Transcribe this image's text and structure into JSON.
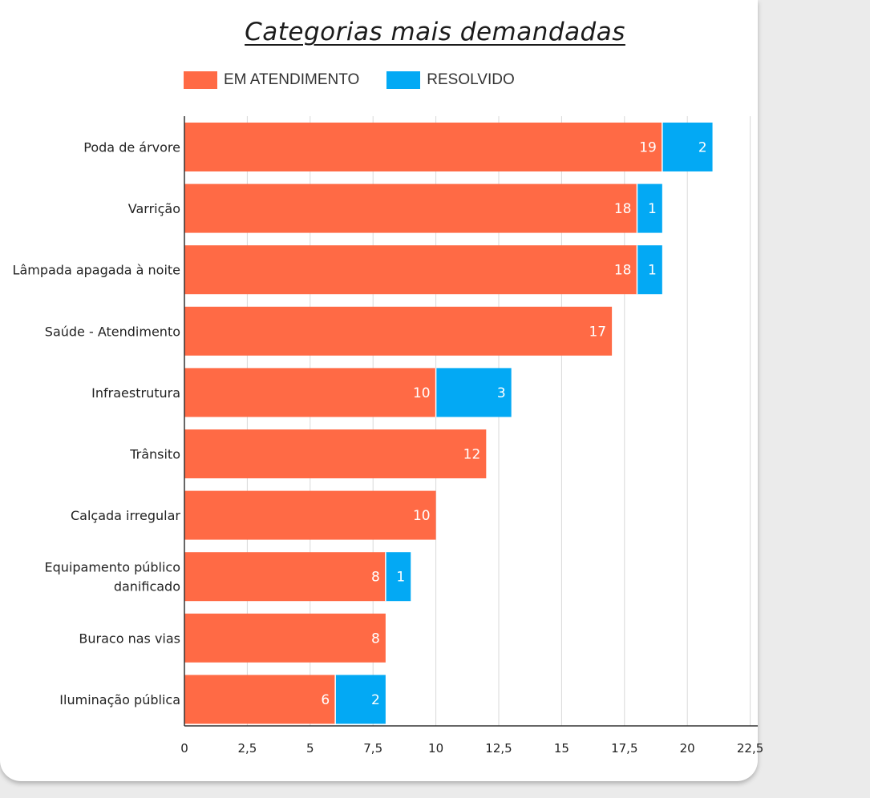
{
  "chart_data": {
    "type": "bar",
    "orientation": "horizontal",
    "stacked": true,
    "title": "Categorias mais demandadas",
    "categories": [
      "Poda de árvore",
      "Varrição",
      "Lâmpada apagada à noite",
      "Saúde - Atendimento",
      "Infraestrutura",
      "Trânsito",
      "Calçada irregular",
      "Equipamento público danificado",
      "Buraco nas vias",
      "Iluminação pública"
    ],
    "series": [
      {
        "name": "EM ATENDIMENTO",
        "color": "#ff6a45",
        "values": [
          19,
          18,
          18,
          17,
          10,
          12,
          10,
          8,
          8,
          6
        ]
      },
      {
        "name": "RESOLVIDO",
        "color": "#03a9f4",
        "values": [
          2,
          1,
          1,
          0,
          3,
          0,
          0,
          1,
          0,
          2
        ]
      }
    ],
    "xlim": [
      0,
      22.5
    ],
    "xticks": [
      0,
      2.5,
      5,
      7.5,
      10,
      12.5,
      15,
      17.5,
      20,
      22.5
    ],
    "xtick_labels": [
      "0",
      "2,5",
      "5",
      "7,5",
      "10",
      "12,5",
      "15",
      "17,5",
      "20",
      "22,5"
    ],
    "grid": true,
    "legend_position": "top"
  }
}
